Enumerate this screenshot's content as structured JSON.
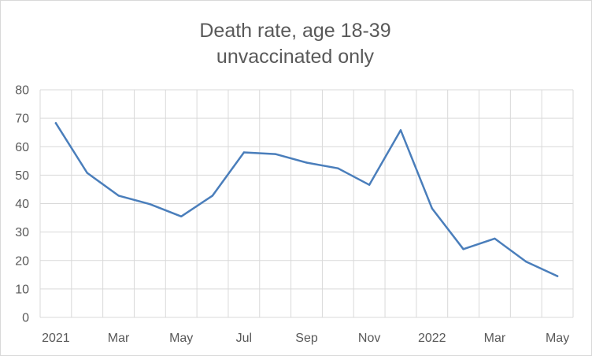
{
  "chart_data": {
    "type": "line",
    "title": [
      "Death rate, age 18-39",
      "unvaccinated only"
    ],
    "xlabel": "",
    "ylabel": "",
    "x": [
      "2021-01",
      "2021-02",
      "2021-03",
      "2021-04",
      "2021-05",
      "2021-06",
      "2021-07",
      "2021-08",
      "2021-09",
      "2021-10",
      "2021-11",
      "2021-12",
      "2022-01",
      "2022-02",
      "2022-03",
      "2022-04",
      "2022-05"
    ],
    "x_tick_labels": [
      "2021",
      "",
      "Mar",
      "",
      "May",
      "",
      "Jul",
      "",
      "Sep",
      "",
      "Nov",
      "",
      "2022",
      "",
      "Mar",
      "",
      "May"
    ],
    "series": [
      {
        "values": [
          68.3,
          50.8,
          42.8,
          39.8,
          35.5,
          42.8,
          58.0,
          57.4,
          54.4,
          52.4,
          46.6,
          65.8,
          38.3,
          24.0,
          27.7,
          19.6,
          14.5
        ]
      }
    ],
    "ylim": [
      0,
      80
    ],
    "y_ticks": [
      0,
      10,
      20,
      30,
      40,
      50,
      60,
      70,
      80
    ],
    "grid": true,
    "legend": "none",
    "colors": {
      "line": "#4a7ebb",
      "grid": "#d9d9d9",
      "text": "#595959"
    }
  }
}
